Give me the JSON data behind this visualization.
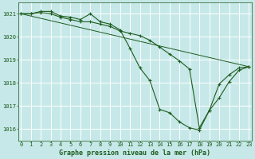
{
  "x": [
    0,
    1,
    2,
    3,
    4,
    5,
    6,
    7,
    8,
    9,
    10,
    11,
    12,
    13,
    14,
    15,
    16,
    17,
    18,
    19,
    20,
    21,
    22,
    23
  ],
  "line1": [
    1021.0,
    1021.0,
    1021.1,
    1021.1,
    1020.9,
    1020.85,
    1020.75,
    1021.0,
    1020.65,
    1020.55,
    1020.3,
    1019.5,
    1018.65,
    1018.1,
    1016.85,
    1016.7,
    1016.3,
    1016.05,
    1015.95,
    1016.8,
    1017.35,
    1018.05,
    1018.55,
    1018.7
  ],
  "line2": [
    1021.0,
    1021.0,
    1021.05,
    1021.0,
    1020.85,
    1020.75,
    1020.65,
    1020.65,
    1020.55,
    1020.45,
    1020.25,
    1020.15,
    1020.05,
    1019.85,
    1019.55,
    1019.25,
    1018.95,
    1018.6,
    1016.05,
    1016.8,
    1017.95,
    1018.35,
    1018.65,
    1018.7
  ],
  "line3_x": [
    0,
    23
  ],
  "line3_y": [
    1021.0,
    1018.7
  ],
  "line_color": "#1e5c1e",
  "bg_color": "#c6e8e8",
  "grid_color": "#b8d8d8",
  "grid_color2": "#ffffff",
  "xlabel": "Graphe pression niveau de la mer (hPa)",
  "xlabel_color": "#1e5c1e",
  "ylim": [
    1015.5,
    1021.5
  ],
  "yticks": [
    1016,
    1017,
    1018,
    1019,
    1020,
    1021
  ],
  "xticks": [
    0,
    1,
    2,
    3,
    4,
    5,
    6,
    7,
    8,
    9,
    10,
    11,
    12,
    13,
    14,
    15,
    16,
    17,
    18,
    19,
    20,
    21,
    22,
    23
  ],
  "tick_fontsize": 5.0,
  "label_fontsize": 6.0
}
